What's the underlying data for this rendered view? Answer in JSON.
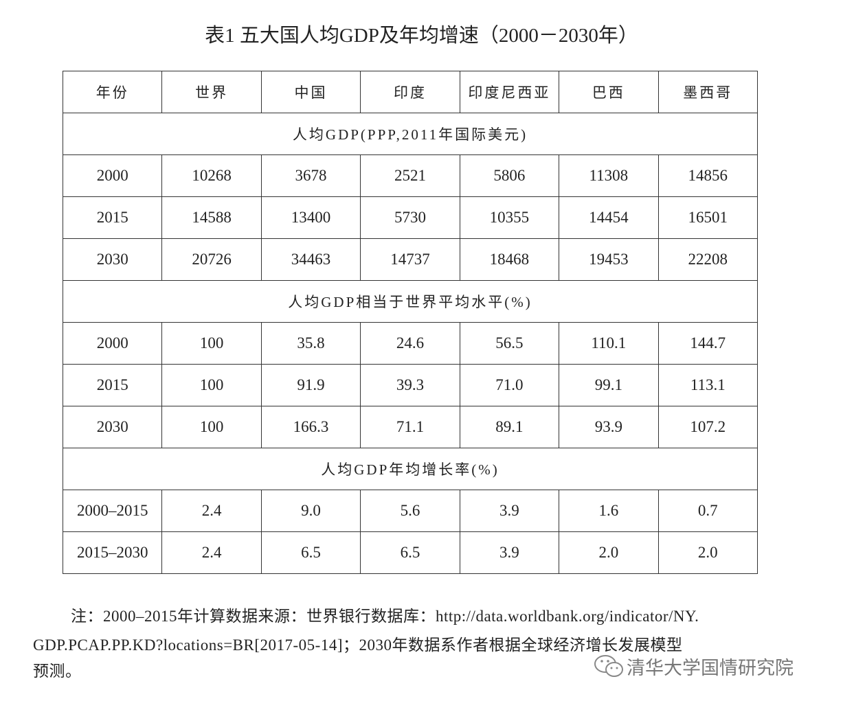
{
  "title": "表1 五大国人均GDP及年均增速（2000－2030年）",
  "table": {
    "header": [
      "年份",
      "世界",
      "中国",
      "印度",
      "印度尼西亚",
      "巴西",
      "墨西哥"
    ],
    "sections": [
      {
        "heading": "人均GDP(PPP,2011年国际美元)",
        "rows": [
          [
            "2000",
            "10268",
            "3678",
            "2521",
            "5806",
            "11308",
            "14856"
          ],
          [
            "2015",
            "14588",
            "13400",
            "5730",
            "10355",
            "14454",
            "16501"
          ],
          [
            "2030",
            "20726",
            "34463",
            "14737",
            "18468",
            "19453",
            "22208"
          ]
        ]
      },
      {
        "heading": "人均GDP相当于世界平均水平(%)",
        "rows": [
          [
            "2000",
            "100",
            "35.8",
            "24.6",
            "56.5",
            "110.1",
            "144.7"
          ],
          [
            "2015",
            "100",
            "91.9",
            "39.3",
            "71.0",
            "99.1",
            "113.1"
          ],
          [
            "2030",
            "100",
            "166.3",
            "71.1",
            "89.1",
            "93.9",
            "107.2"
          ]
        ]
      },
      {
        "heading": "人均GDP年均增长率(%)",
        "rows": [
          [
            "2000–2015",
            "2.4",
            "9.0",
            "5.6",
            "3.9",
            "1.6",
            "0.7"
          ],
          [
            "2015–2030",
            "2.4",
            "6.5",
            "6.5",
            "3.9",
            "2.0",
            "2.0"
          ]
        ]
      }
    ]
  },
  "note": [
    "注：2000–2015年计算数据来源：世界银行数据库：http://data.worldbank.org/indicator/NY.",
    "GDP.PCAP.PP.KD?locations=BR[2017-05-14]；2030年数据系作者根据全球经济增长发展模型",
    "预测。"
  ],
  "watermark": "清华大学国情研究院"
}
